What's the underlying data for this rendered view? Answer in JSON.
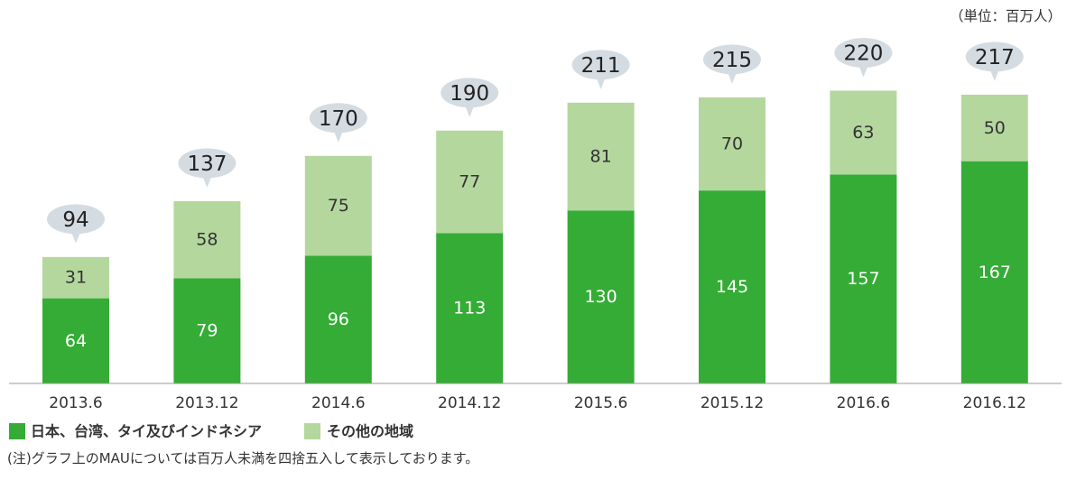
{
  "unit_note": "（単位：百万人）",
  "chart_data": {
    "type": "bar",
    "stacked": true,
    "categories": [
      "2013.6",
      "2013.12",
      "2014.6",
      "2014.12",
      "2015.6",
      "2015.12",
      "2016.6",
      "2016.12"
    ],
    "series": [
      {
        "name": "日本、台湾、タイ及びインドネシア",
        "color": "#35ac36",
        "values": [
          64,
          79,
          96,
          113,
          130,
          145,
          157,
          167
        ]
      },
      {
        "name": "その他の地域",
        "color": "#b4d79e",
        "values": [
          31,
          58,
          75,
          77,
          81,
          70,
          63,
          50
        ]
      }
    ],
    "totals": [
      94,
      137,
      170,
      190,
      211,
      215,
      220,
      217
    ],
    "bubble_color": "#d4dce2",
    "grid": false,
    "legend": "bottom-left"
  },
  "footnote": "(注)グラフ上のMAUについては百万人未満を四捨五入して表示しております。"
}
